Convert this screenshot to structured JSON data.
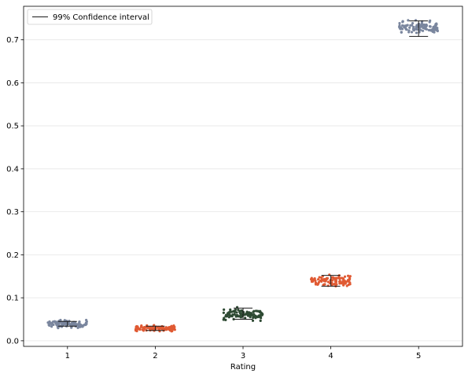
{
  "chart_data": {
    "type": "scatter",
    "subtype": "strip-plot-with-confidence-intervals",
    "title": "",
    "xlabel": "Rating",
    "ylabel": "",
    "categories": [
      "1",
      "2",
      "3",
      "4",
      "5"
    ],
    "ylim": [
      -0.013,
      0.778
    ],
    "yticks": [
      0.0,
      0.1,
      0.2,
      0.3,
      0.4,
      0.5,
      0.6,
      0.7
    ],
    "ytick_labels": [
      "0.0",
      "0.1",
      "0.2",
      "0.3",
      "0.4",
      "0.5",
      "0.6",
      "0.7"
    ],
    "grid": "horizontal",
    "legend": {
      "placement": "top-left",
      "entries": [
        "99% Confidence interval"
      ]
    },
    "groups": [
      {
        "category": "1",
        "color": "#7a869e",
        "center": 0.039,
        "spread": 0.004,
        "ci_low": 0.034,
        "ci_high": 0.045
      },
      {
        "category": "2",
        "color": "#e05a33",
        "center": 0.029,
        "spread": 0.003,
        "ci_low": 0.024,
        "ci_high": 0.034
      },
      {
        "category": "3",
        "color": "#2e4a33",
        "center": 0.062,
        "spread": 0.006,
        "ci_low": 0.05,
        "ci_high": 0.076
      },
      {
        "category": "4",
        "color": "#e05a33",
        "center": 0.14,
        "spread": 0.006,
        "ci_low": 0.127,
        "ci_high": 0.152
      },
      {
        "category": "5",
        "color": "#7a869e",
        "center": 0.728,
        "spread": 0.007,
        "ci_low": 0.708,
        "ci_high": 0.744
      }
    ],
    "ci_color": "#1a1a1a"
  }
}
